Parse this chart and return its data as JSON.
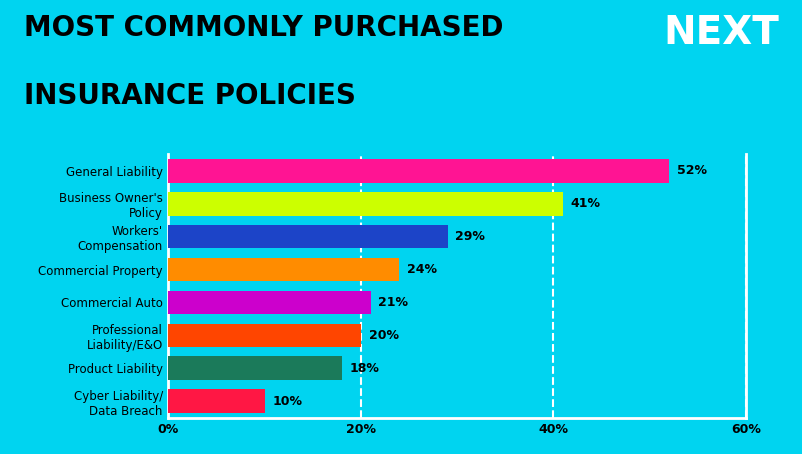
{
  "title_line1": "MOST COMMONLY PURCHASED",
  "title_line2": "INSURANCE POLICIES",
  "background_color": "#00D4F0",
  "categories": [
    "Cyber Liability/\nData Breach",
    "Product Liability",
    "Professional\nLiability/E&O",
    "Commercial Auto",
    "Commercial Property",
    "Workers'\nCompensation",
    "Business Owner's\nPolicy",
    "General Liability"
  ],
  "values": [
    10,
    18,
    20,
    21,
    24,
    29,
    41,
    52
  ],
  "bar_colors": [
    "#FF1744",
    "#1B7A5A",
    "#FF4500",
    "#CC00CC",
    "#FF8C00",
    "#1C44C8",
    "#CCFF00",
    "#FF1493"
  ],
  "xlim": [
    0,
    60
  ],
  "xticks": [
    0,
    20,
    40,
    60
  ],
  "xtick_labels": [
    "0%",
    "20%",
    "40%",
    "60%"
  ],
  "value_labels": [
    "10%",
    "18%",
    "20%",
    "21%",
    "24%",
    "29%",
    "41%",
    "52%"
  ],
  "grid_color": "#FFFFFF",
  "title_color": "#000000",
  "label_color": "#000000",
  "bar_height": 0.72,
  "next_logo_color": "#FFFFFF"
}
